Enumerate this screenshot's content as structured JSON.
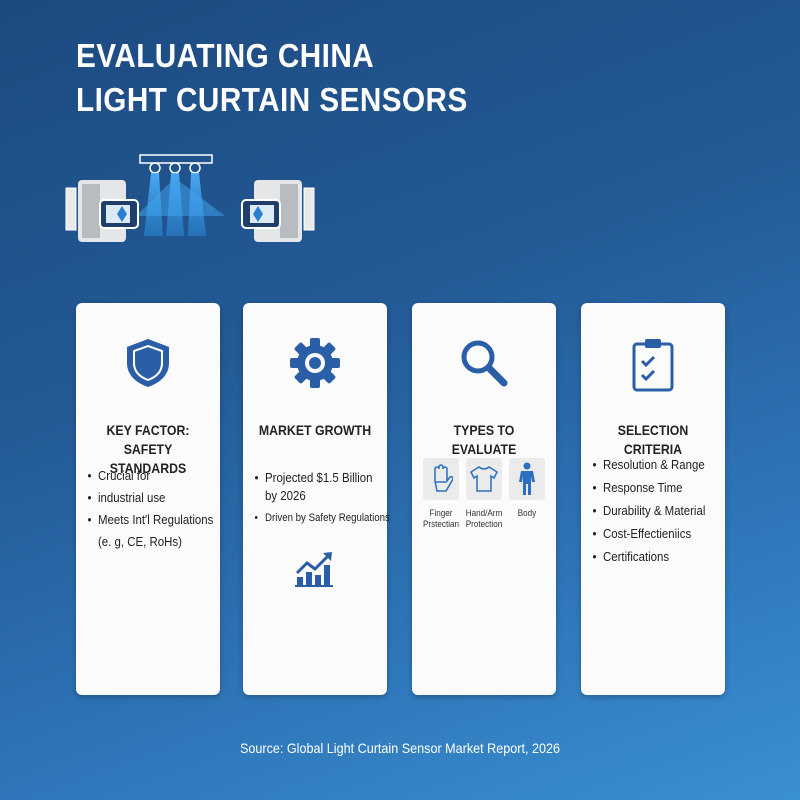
{
  "title": {
    "line1": "EVALUATING CHINA",
    "line2": "LIGHT CURTAIN SENSORS"
  },
  "hero_icon": "light-curtain-sensor-illustration",
  "colors": {
    "accent": "#2a5fa8",
    "background_start": "#1d4a80",
    "background_end": "#3b90d2",
    "card": "#fbfbfb"
  },
  "cards": [
    {
      "icon": "shield-icon",
      "title_line1": "KEY FACTOR:",
      "title_line2": "SAFETY STANDARDS",
      "bullets": [
        "Crucial for",
        "industrial use",
        "Meets Int'l Regulations",
        "(e. g, CE, RoHs)"
      ]
    },
    {
      "icon": "gear-icon",
      "title_line1": "MARKET GROWTH",
      "bullets": [
        "Projected $1.5 Billion",
        "by 2026",
        "Driven by Safety Regulations"
      ],
      "footer_icon": "growth-chart-icon"
    },
    {
      "icon": "magnifier-icon",
      "title_line1": "TYPES TO EVALUATE",
      "types": [
        {
          "icon": "hand-icon",
          "line1": "Finger",
          "line2": "Prstectian"
        },
        {
          "icon": "shirt-icon",
          "line1": "Hand/Arm",
          "line2": "Protection"
        },
        {
          "icon": "person-icon",
          "line1": "Body",
          "line2": ""
        }
      ]
    },
    {
      "icon": "clipboard-check-icon",
      "title_line1": "SELECTION CRITERIA",
      "bullets": [
        "Resolution & Range",
        "Response Time",
        "Durability & Material",
        "Cost-Effectieniics",
        "Certifications"
      ]
    }
  ],
  "source": "Source: Global Light Curtain Sensor Market Report, 2026"
}
